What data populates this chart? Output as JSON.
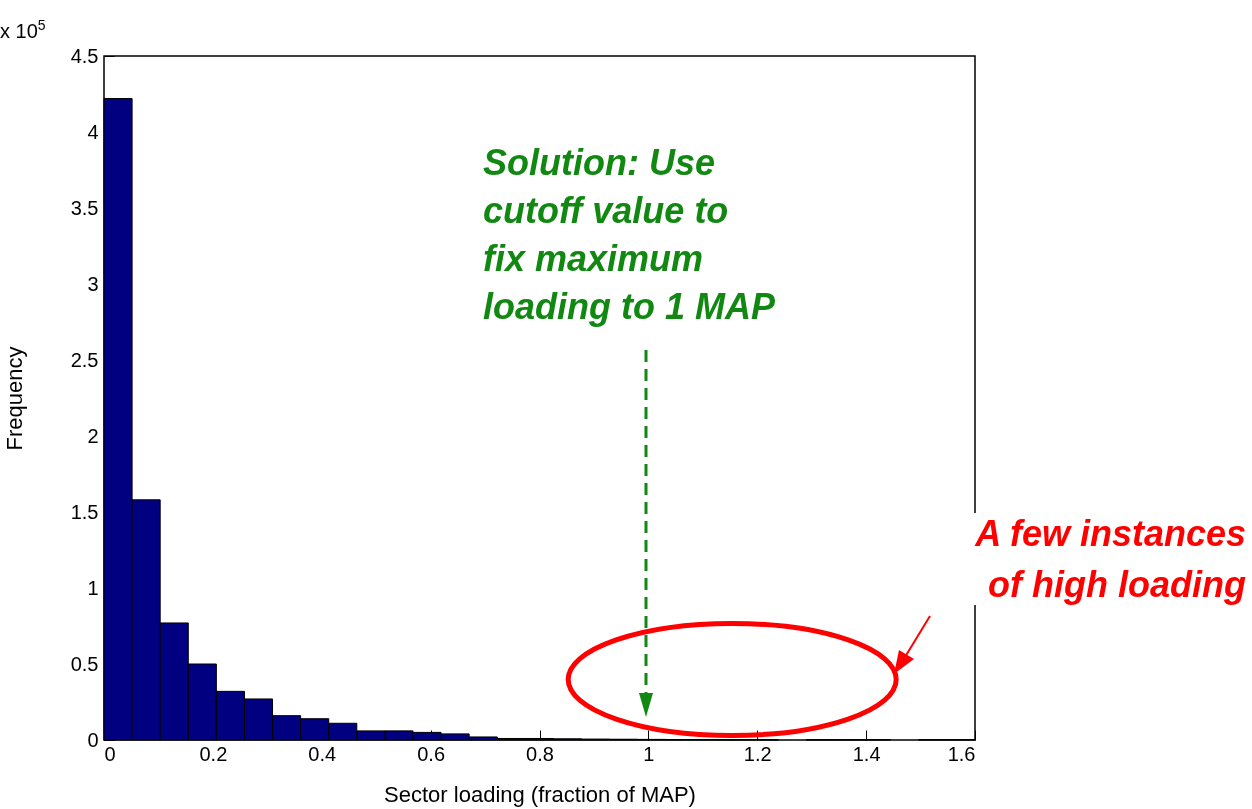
{
  "chart_data": {
    "type": "histogram",
    "xlabel": "Sector loading (fraction of MAP)",
    "ylabel": "Frequency",
    "bins": [
      0,
      0.0516,
      0.1032,
      0.1548,
      0.2064,
      0.258,
      0.3096,
      0.3612,
      0.4128,
      0.4644,
      0.516,
      0.5676,
      0.6192,
      0.6708,
      0.7224,
      0.774,
      0.8256,
      0.8772,
      0.9288,
      0.9804,
      1.032,
      1.0836,
      1.1352,
      1.1868,
      1.2384,
      1.29,
      1.3416,
      1.3932,
      1.4448,
      1.4964,
      1.548,
      1.5996
    ],
    "values": [
      4.22,
      1.58,
      0.77,
      0.5,
      0.32,
      0.27,
      0.16,
      0.14,
      0.11,
      0.06,
      0.06,
      0.05,
      0.04,
      0.02,
      0.01,
      0.01,
      0.008,
      0.006,
      0.005,
      0.004,
      0.003,
      0.003,
      0.002,
      0.002,
      0,
      0.002,
      0.002,
      0.002,
      0,
      0.002,
      0.002
    ],
    "color": "#000080",
    "xlim": [
      0,
      1.6
    ],
    "xticks": [
      0,
      0.2,
      0.4,
      0.6,
      0.8,
      1,
      1.2,
      1.4,
      1.6
    ],
    "ylim": [
      0,
      4.5
    ],
    "yticks": [
      0,
      0.5,
      1,
      1.5,
      2,
      2.5,
      3,
      3.5,
      4,
      4.5
    ],
    "grid": false,
    "legend": false,
    "annotations": [
      "Solution: Use cutoff value to fix maximum loading to 1 MAP",
      "A few instances of high loading",
      "x 10$^{5}$"
    ]
  }
}
